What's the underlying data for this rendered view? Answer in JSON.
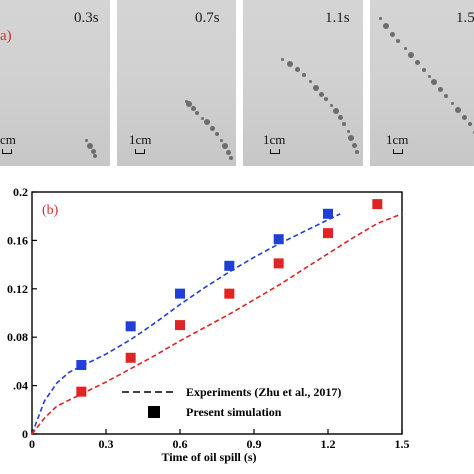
{
  "panel_a": {
    "label": "a)",
    "frames": [
      {
        "time": "0.3s",
        "scale": "1cm",
        "scale_shown": "cm"
      },
      {
        "time": "0.7s",
        "scale": "1cm",
        "scale_shown": "1cm"
      },
      {
        "time": "1.1s",
        "scale": "1cm",
        "scale_shown": "1cm"
      },
      {
        "time": "1.5",
        "scale": "1cm",
        "scale_shown": "1cm"
      }
    ]
  },
  "chart_data": {
    "type": "scatter",
    "panel_label": "(b)",
    "xlabel": "Time of oil spill (s)",
    "ylabel": "",
    "xlim": [
      0,
      1.5
    ],
    "ylim": [
      0,
      0.2
    ],
    "x_ticks": [
      "0",
      "0.3",
      "0.6",
      "0.9",
      "1.2",
      "1.5"
    ],
    "y_ticks": [
      "0",
      ".04",
      "0.08",
      "0.12",
      "0.16",
      "0.2"
    ],
    "y_tick_values": [
      0,
      0.04,
      0.08,
      0.12,
      0.16,
      0.2
    ],
    "x_tick_values": [
      0,
      0.3,
      0.6,
      0.9,
      1.2,
      1.5
    ],
    "grid": false,
    "series": [
      {
        "kind": "markers",
        "color": "#1f3fd6",
        "x": [
          0.2,
          0.4,
          0.6,
          0.8,
          1.0,
          1.2
        ],
        "y": [
          0.057,
          0.089,
          0.116,
          0.139,
          0.161,
          0.182
        ]
      },
      {
        "kind": "markers",
        "color": "#e02424",
        "x": [
          0.2,
          0.4,
          0.6,
          0.8,
          1.0,
          1.2,
          1.4
        ],
        "y": [
          0.035,
          0.063,
          0.09,
          0.116,
          0.141,
          0.166,
          0.19
        ]
      },
      {
        "kind": "dashed-line",
        "color": "#1f3fd6",
        "x": [
          0,
          0.05,
          0.1,
          0.15,
          0.2,
          0.3,
          0.4,
          0.5,
          0.6,
          0.7,
          0.8,
          0.9,
          1.0,
          1.1,
          1.2,
          1.25
        ],
        "y": [
          0,
          0.027,
          0.042,
          0.051,
          0.056,
          0.066,
          0.078,
          0.092,
          0.107,
          0.121,
          0.134,
          0.146,
          0.157,
          0.167,
          0.177,
          0.182
        ]
      },
      {
        "kind": "dashed-line",
        "color": "#e02424",
        "x": [
          0,
          0.05,
          0.1,
          0.2,
          0.3,
          0.4,
          0.5,
          0.6,
          0.7,
          0.8,
          0.9,
          1.0,
          1.1,
          1.2,
          1.3,
          1.4,
          1.5
        ],
        "y": [
          0,
          0.013,
          0.023,
          0.033,
          0.043,
          0.054,
          0.065,
          0.077,
          0.088,
          0.099,
          0.111,
          0.123,
          0.136,
          0.149,
          0.162,
          0.174,
          0.182
        ]
      }
    ],
    "legend": {
      "position": "bottom-right",
      "entries": [
        {
          "symbol": "dashed-line",
          "label": "Experiments (Zhu et al., 2017)"
        },
        {
          "symbol": "square",
          "label": "Present simulation"
        }
      ]
    },
    "colors": {
      "blue": "#1f3fd6",
      "red": "#e02424",
      "panel_label": "#d0302a"
    }
  }
}
